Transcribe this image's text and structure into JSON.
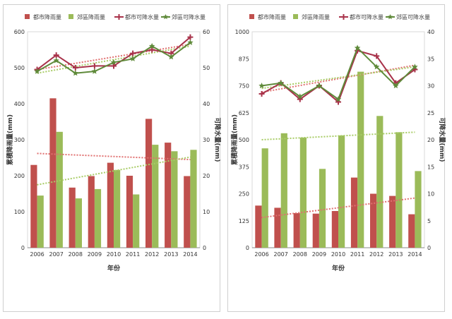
{
  "chart_data": [
    {
      "type": "bar",
      "categories": [
        "2006",
        "2007",
        "2008",
        "2009",
        "2010",
        "2011",
        "2012",
        "2013",
        "2014"
      ],
      "series": [
        {
          "name": "都市降雨量",
          "kind": "bar",
          "axis": "left",
          "color": "#c0504d",
          "values": [
            230,
            415,
            167,
            199,
            236,
            200,
            358,
            292,
            199
          ]
        },
        {
          "name": "郊區降雨量",
          "kind": "bar",
          "axis": "left",
          "color": "#9bbb59",
          "values": [
            145,
            322,
            137,
            163,
            216,
            148,
            286,
            268,
            272
          ]
        },
        {
          "name": "都市可降水量",
          "kind": "line",
          "axis": "right",
          "color": "#a8324a",
          "values": [
            49.5,
            53.5,
            50.0,
            50.5,
            50.5,
            54.0,
            55.0,
            54.0,
            58.5
          ]
        },
        {
          "name": "郊區可降水量",
          "kind": "line",
          "axis": "right",
          "color": "#5f8a3a",
          "values": [
            49.0,
            52.0,
            48.5,
            49.0,
            51.5,
            52.5,
            56.0,
            53.0,
            57.0
          ]
        }
      ],
      "trendlines": [
        {
          "series": "都市降雨量",
          "axis": "left",
          "color": "#e07070",
          "start": 262,
          "end": 245
        },
        {
          "series": "郊區降雨量",
          "axis": "left",
          "color": "#a8cc66",
          "start": 175,
          "end": 252
        },
        {
          "series": "都市可降水量",
          "axis": "right",
          "color": "#e07070",
          "start": 49.5,
          "end": 56.5
        },
        {
          "series": "郊區可降水量",
          "axis": "right",
          "color": "#a8cc66",
          "start": 48.5,
          "end": 56.0
        }
      ],
      "ylim": [
        0,
        600
      ],
      "yticks": [
        0,
        100,
        200,
        300,
        400,
        500,
        600
      ],
      "y2lim": [
        0,
        60
      ],
      "y2ticks": [
        0,
        10,
        20,
        30,
        40,
        50,
        60
      ],
      "xlabel": "年份",
      "ylabel": "累積降雨量(mm)",
      "y2label": "可降水量(mm)",
      "legend_position": "top",
      "grid": false
    },
    {
      "type": "bar",
      "categories": [
        "2006",
        "2007",
        "2008",
        "2009",
        "2010",
        "2011",
        "2012",
        "2013",
        "2014"
      ],
      "series": [
        {
          "name": "都市降雨量",
          "kind": "bar",
          "axis": "left",
          "color": "#c0504d",
          "values": [
            195,
            185,
            160,
            158,
            170,
            325,
            250,
            240,
            155
          ]
        },
        {
          "name": "郊區降雨量",
          "kind": "bar",
          "axis": "left",
          "color": "#9bbb59",
          "values": [
            460,
            530,
            510,
            365,
            520,
            815,
            610,
            535,
            355
          ]
        },
        {
          "name": "都市可降水量",
          "kind": "line",
          "axis": "right",
          "color": "#a8324a",
          "values": [
            28.5,
            30.5,
            27.5,
            30.0,
            27.0,
            36.5,
            35.5,
            30.5,
            33.0
          ]
        },
        {
          "name": "郊區可降水量",
          "kind": "line",
          "axis": "right",
          "color": "#5f8a3a",
          "values": [
            30.0,
            30.5,
            28.0,
            30.0,
            27.5,
            37.0,
            33.5,
            30.0,
            33.5
          ]
        }
      ],
      "trendlines": [
        {
          "series": "都市降雨量",
          "axis": "left",
          "color": "#e07070",
          "start": 140,
          "end": 230
        },
        {
          "series": "郊區降雨量",
          "axis": "left",
          "color": "#a8cc66",
          "start": 500,
          "end": 535
        },
        {
          "series": "都市可降水量",
          "axis": "right",
          "color": "#e07070",
          "start": 28.8,
          "end": 33.8
        },
        {
          "series": "郊區可降水量",
          "axis": "right",
          "color": "#a8cc66",
          "start": 29.5,
          "end": 33.5
        }
      ],
      "ylim": [
        0,
        1000
      ],
      "yticks": [
        0,
        125,
        250,
        375,
        500,
        625,
        750,
        875,
        1000
      ],
      "y2lim": [
        0,
        40
      ],
      "y2ticks": [
        0,
        5,
        10,
        15,
        20,
        25,
        30,
        35,
        40
      ],
      "xlabel": "年份",
      "ylabel": "累積降雨量(mm)",
      "y2label": "可降水量(mm)",
      "legend_position": "top",
      "grid": false
    }
  ]
}
